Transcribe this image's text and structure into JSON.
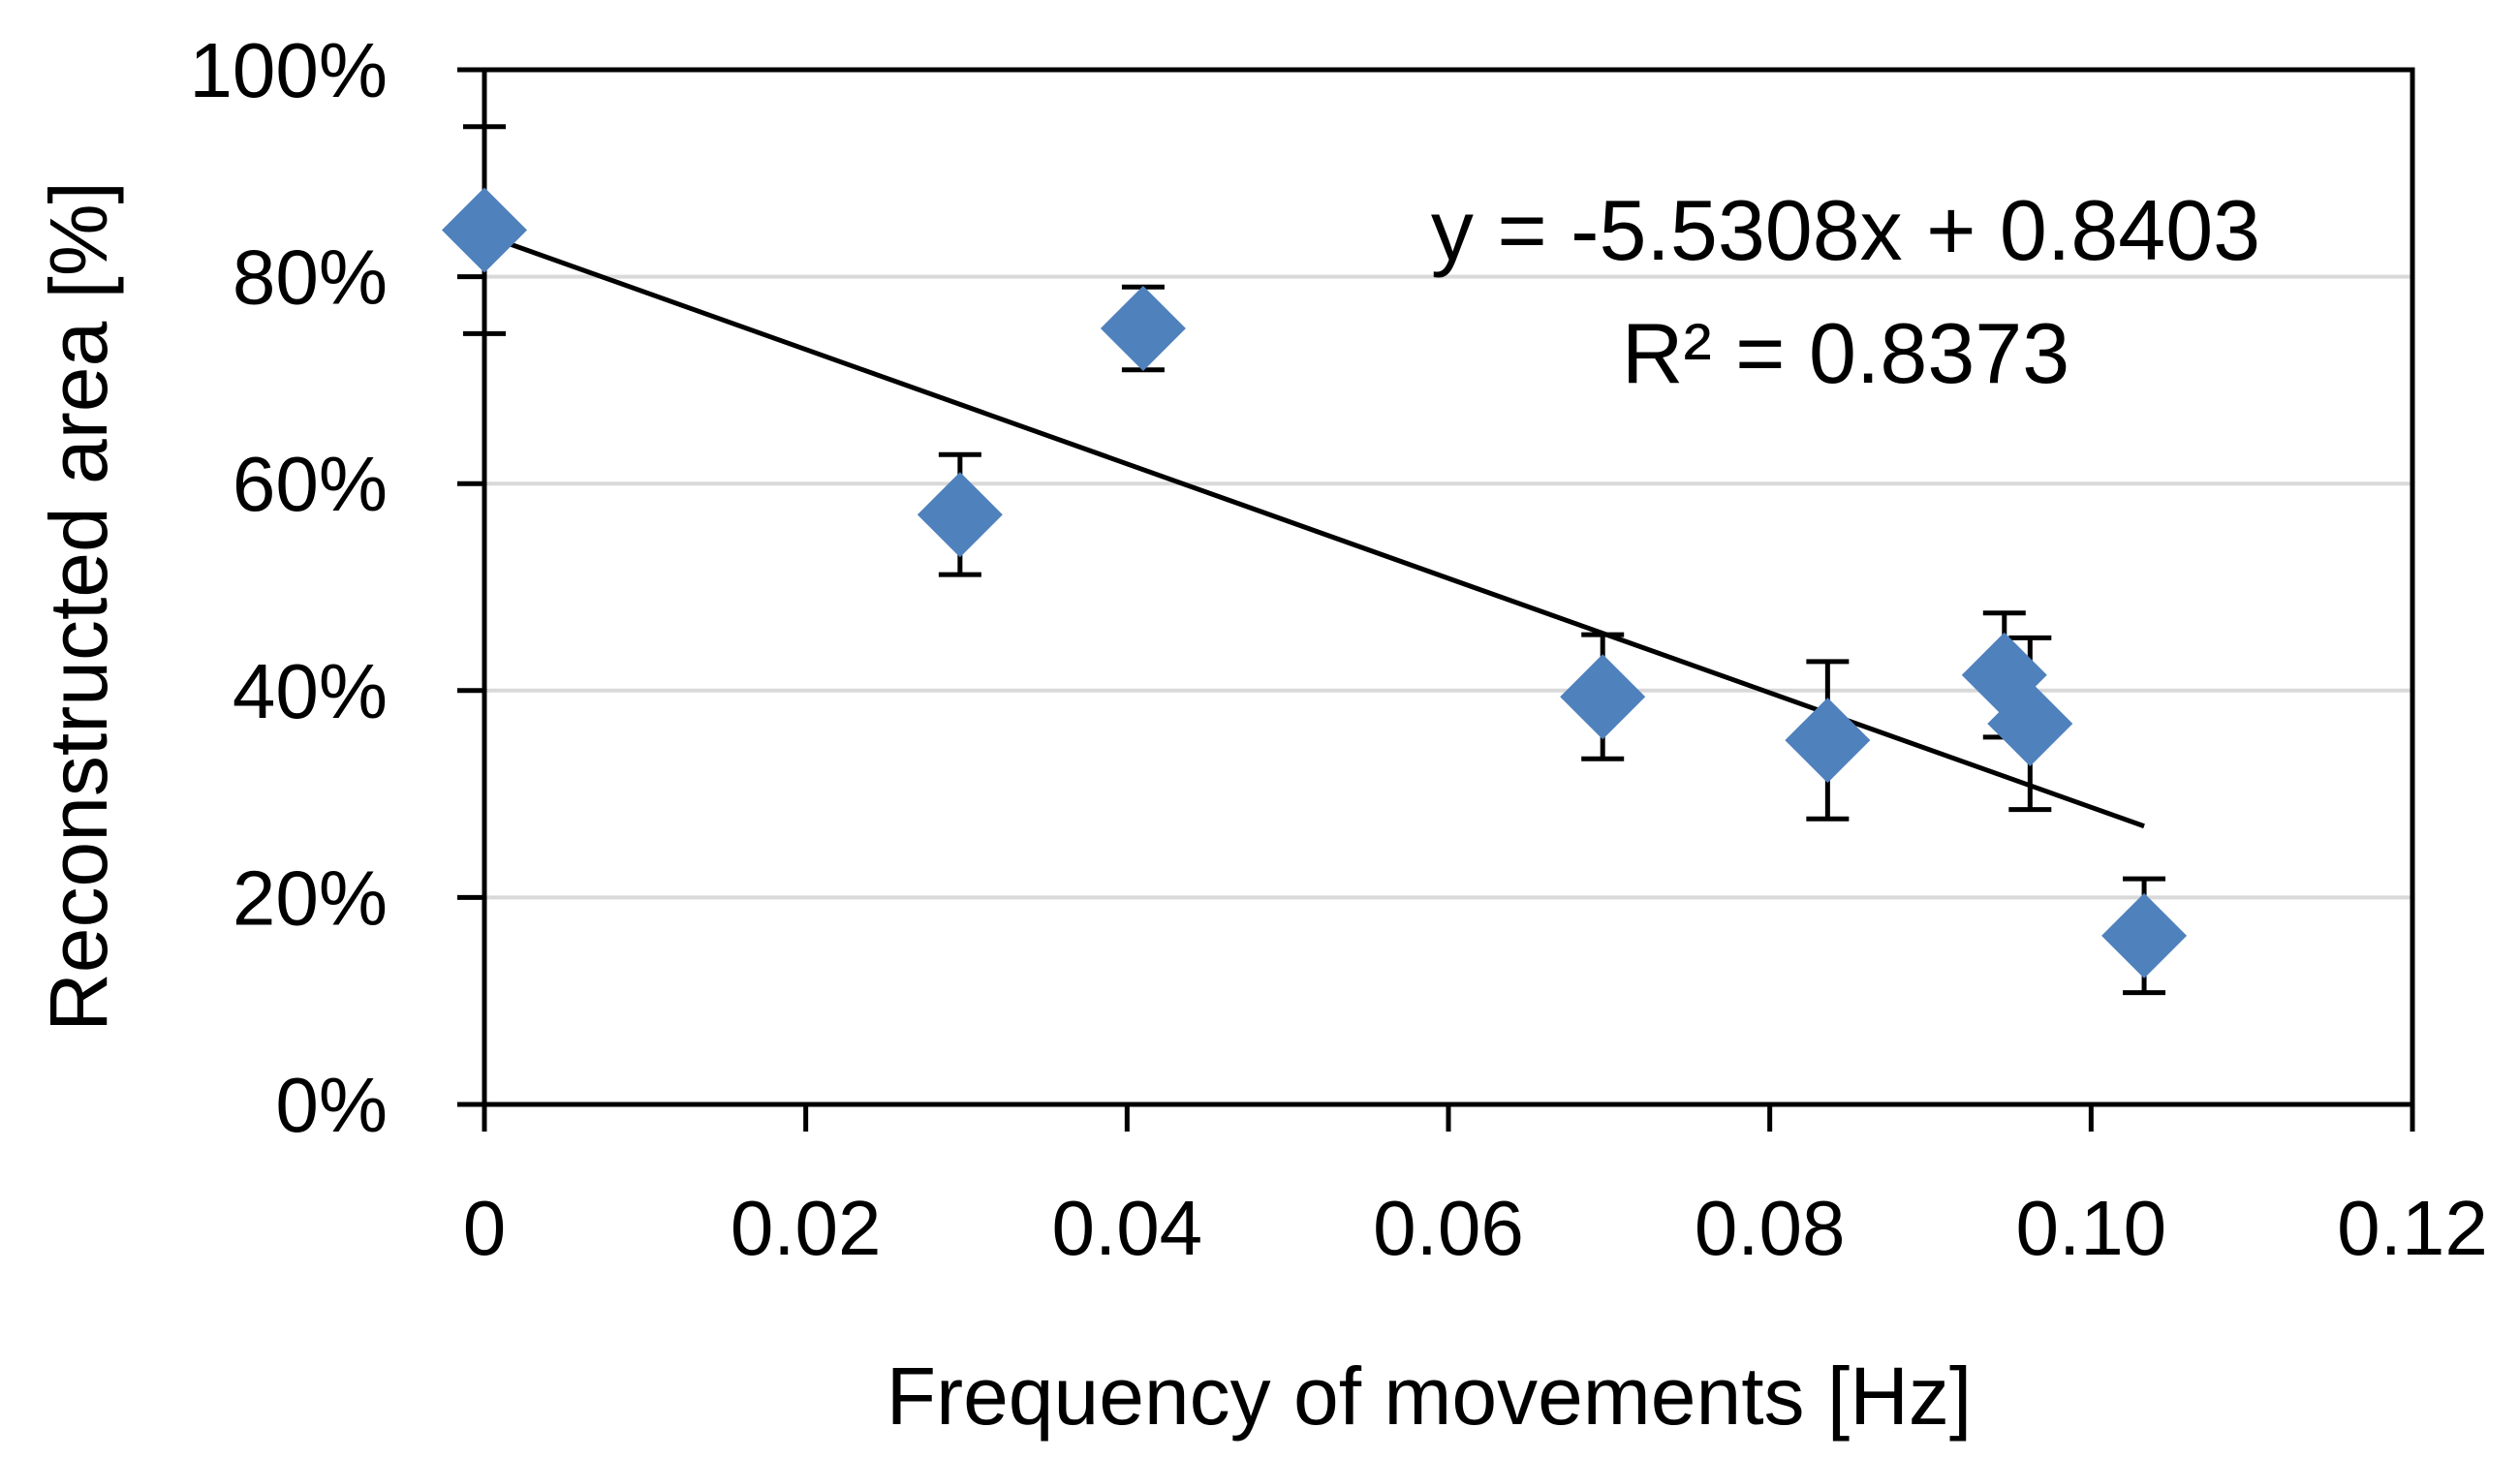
{
  "chart_data": {
    "type": "scatter",
    "title": "",
    "xlabel": "Frequency of movements [Hz]",
    "ylabel": "Reconstructed area [%]",
    "xlim": [
      0,
      0.12
    ],
    "ylim": [
      0,
      1.0
    ],
    "x_ticks": [
      {
        "value": 0,
        "label": "0"
      },
      {
        "value": 0.02,
        "label": "0.02"
      },
      {
        "value": 0.04,
        "label": "0.04"
      },
      {
        "value": 0.06,
        "label": "0.06"
      },
      {
        "value": 0.08,
        "label": "0.08"
      },
      {
        "value": 0.1,
        "label": "0.10"
      },
      {
        "value": 0.12,
        "label": "0.12"
      }
    ],
    "y_ticks": [
      {
        "value": 0,
        "label": "0%"
      },
      {
        "value": 0.2,
        "label": "20%"
      },
      {
        "value": 0.4,
        "label": "40%"
      },
      {
        "value": 0.6,
        "label": "60%"
      },
      {
        "value": 0.8,
        "label": "80%"
      },
      {
        "value": 1.0,
        "label": "100%"
      }
    ],
    "grid": "horizontal",
    "series": [
      {
        "name": "Reconstructed area",
        "color": "#4f81bd",
        "points": [
          {
            "x": 0.0,
            "y": 0.845,
            "err": 0.1
          },
          {
            "x": 0.0296,
            "y": 0.57,
            "err": 0.058
          },
          {
            "x": 0.041,
            "y": 0.75,
            "err": 0.04
          },
          {
            "x": 0.0696,
            "y": 0.394,
            "err": 0.06
          },
          {
            "x": 0.0836,
            "y": 0.352,
            "err": 0.076
          },
          {
            "x": 0.0946,
            "y": 0.415,
            "err": 0.06
          },
          {
            "x": 0.0962,
            "y": 0.368,
            "err": 0.083
          },
          {
            "x": 0.1033,
            "y": 0.163,
            "err": 0.055
          }
        ]
      }
    ],
    "trendline": {
      "type": "linear",
      "slope": -5.5308,
      "intercept": 0.8403,
      "x_range": [
        0,
        0.1033
      ],
      "color": "#000000"
    },
    "annotations": {
      "equation": "y = -5.5308x + 0.8403",
      "r_squared": "R² = 0.8373"
    }
  }
}
